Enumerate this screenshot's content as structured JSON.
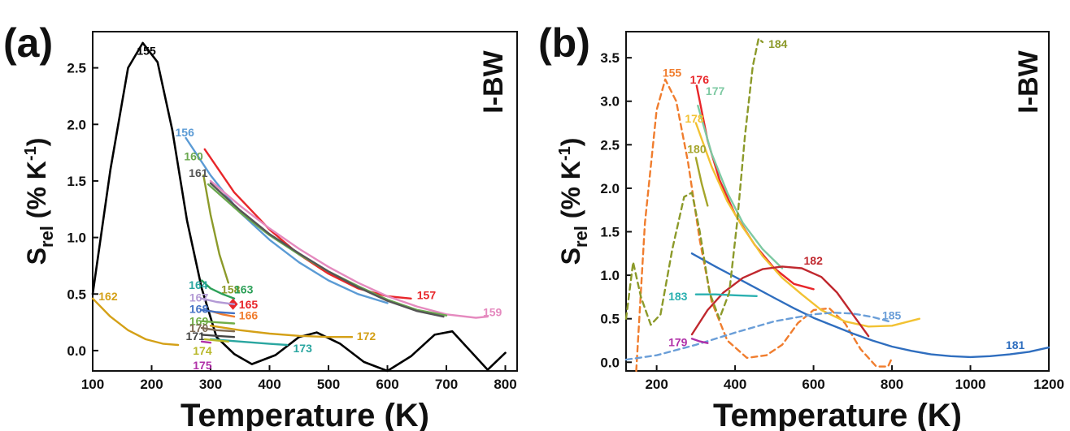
{
  "figure": {
    "panels": [
      {
        "label": "(a)",
        "tag": "I-BW"
      },
      {
        "label": "(b)",
        "tag": "I-BW"
      }
    ]
  },
  "chart_data": [
    {
      "type": "line",
      "panel": "(a)",
      "xlabel": "Temperature (K)",
      "ylabel": "S_rel (% K^-1)",
      "xlim": [
        100,
        820
      ],
      "ylim": [
        -0.18,
        2.82
      ],
      "xticks": [
        100,
        200,
        300,
        400,
        500,
        600,
        700,
        800
      ],
      "yticks": [
        0.0,
        0.5,
        1.0,
        1.5,
        2.0,
        2.5
      ],
      "grid": false,
      "series": [
        {
          "name": "155",
          "color": "#000000",
          "dash": false,
          "x": [
            100,
            130,
            160,
            185,
            210,
            235,
            260,
            285,
            310,
            340,
            370,
            410,
            450,
            480,
            520,
            560,
            600,
            640,
            680,
            710,
            740,
            770,
            800
          ],
          "y": [
            0.5,
            1.6,
            2.5,
            2.72,
            2.55,
            1.95,
            1.15,
            0.55,
            0.12,
            -0.03,
            -0.12,
            -0.04,
            0.12,
            0.16,
            0.06,
            -0.1,
            -0.18,
            -0.05,
            0.14,
            0.17,
            0.0,
            -0.17,
            -0.02
          ],
          "label_at": [
            175,
            2.65
          ]
        },
        {
          "name": "156",
          "color": "#5b9bd5",
          "dash": false,
          "x": [
            258,
            300,
            350,
            400,
            450,
            500,
            550,
            600
          ],
          "y": [
            1.88,
            1.55,
            1.22,
            0.98,
            0.78,
            0.62,
            0.5,
            0.42
          ],
          "label_at": [
            240,
            1.93
          ]
        },
        {
          "name": "157",
          "color": "#e8262a",
          "dash": false,
          "x": [
            290,
            340,
            400,
            450,
            500,
            550,
            600,
            640
          ],
          "y": [
            1.78,
            1.4,
            1.07,
            0.85,
            0.68,
            0.55,
            0.48,
            0.46
          ],
          "label_at": [
            650,
            0.49
          ]
        },
        {
          "name": "158",
          "color": "#8c9a2a",
          "dash": false,
          "x": [
            288,
            300,
            315,
            330
          ],
          "y": [
            1.55,
            1.2,
            0.85,
            0.6
          ],
          "label_at": [
            318,
            0.54
          ]
        },
        {
          "name": "159",
          "color": "#e58abf",
          "dash": false,
          "x": [
            300,
            350,
            400,
            450,
            500,
            550,
            600,
            650,
            700,
            750,
            770
          ],
          "y": [
            1.5,
            1.28,
            1.08,
            0.9,
            0.74,
            0.6,
            0.48,
            0.39,
            0.32,
            0.29,
            0.3
          ],
          "label_at": [
            762,
            0.34
          ]
        },
        {
          "name": "160",
          "color": "#6aa84f",
          "dash": false,
          "x": [
            296,
            350,
            400,
            450,
            500,
            550,
            600,
            650,
            700
          ],
          "y": [
            1.47,
            1.22,
            1.02,
            0.85,
            0.7,
            0.57,
            0.45,
            0.36,
            0.31
          ],
          "label_at": [
            255,
            1.72
          ]
        },
        {
          "name": "161",
          "color": "#555555",
          "dash": false,
          "x": [
            300,
            350,
            400,
            450,
            500,
            550,
            600,
            650,
            695
          ],
          "y": [
            1.48,
            1.24,
            1.03,
            0.86,
            0.7,
            0.56,
            0.44,
            0.35,
            0.3
          ],
          "label_at": [
            263,
            1.57
          ]
        },
        {
          "name": "162",
          "color": "#d4a017",
          "dash": false,
          "x": [
            100,
            130,
            160,
            190,
            220,
            245
          ],
          "y": [
            0.46,
            0.3,
            0.18,
            0.1,
            0.06,
            0.05
          ],
          "label_at": [
            110,
            0.48
          ]
        },
        {
          "name": "163",
          "color": "#2ca058",
          "dash": false,
          "x": [
            285,
            300,
            320,
            340
          ],
          "y": [
            0.62,
            0.55,
            0.5,
            0.46
          ],
          "label_at": [
            340,
            0.54
          ]
        },
        {
          "name": "164",
          "color": "#2aa6a0",
          "dash": false,
          "label_at": [
            263,
            0.58
          ]
        },
        {
          "name": "165",
          "color": "#e8262a",
          "dash": false,
          "marker": "diamond",
          "x": [
            338
          ],
          "y": [
            0.41
          ],
          "label_at": [
            348,
            0.41
          ]
        },
        {
          "name": "166",
          "color": "#f07d2e",
          "dash": false,
          "x": [
            300,
            320,
            340
          ],
          "y": [
            0.35,
            0.32,
            0.3
          ],
          "label_at": [
            348,
            0.31
          ]
        },
        {
          "name": "167",
          "color": "#b39ad5",
          "dash": false,
          "x": [
            285,
            310,
            340
          ],
          "y": [
            0.46,
            0.43,
            0.41
          ],
          "label_at": [
            264,
            0.47
          ]
        },
        {
          "name": "168",
          "color": "#4472c4",
          "dash": false,
          "x": [
            285,
            310,
            340
          ],
          "y": [
            0.36,
            0.34,
            0.33
          ],
          "label_at": [
            264,
            0.37
          ]
        },
        {
          "name": "169",
          "color": "#70ad47",
          "dash": false,
          "x": [
            285,
            310,
            340
          ],
          "y": [
            0.26,
            0.25,
            0.24
          ],
          "label_at": [
            264,
            0.26
          ]
        },
        {
          "name": "170",
          "color": "#7f6a55",
          "dash": false,
          "x": [
            285,
            310,
            340
          ],
          "y": [
            0.2,
            0.18,
            0.17
          ],
          "label_at": [
            264,
            0.2
          ]
        },
        {
          "name": "171",
          "color": "#444444",
          "dash": false,
          "x": [
            285,
            310,
            340
          ],
          "y": [
            0.14,
            0.13,
            0.12
          ],
          "label_at": [
            258,
            0.13
          ]
        },
        {
          "name": "172",
          "color": "#d4a017",
          "dash": false,
          "x": [
            300,
            350,
            400,
            450,
            500,
            540
          ],
          "y": [
            0.22,
            0.18,
            0.15,
            0.13,
            0.12,
            0.12
          ],
          "label_at": [
            548,
            0.13
          ]
        },
        {
          "name": "173",
          "color": "#2aa6a0",
          "dash": false,
          "x": [
            300,
            350,
            400,
            430
          ],
          "y": [
            0.1,
            0.08,
            0.06,
            0.05
          ],
          "label_at": [
            440,
            0.02
          ]
        },
        {
          "name": "174",
          "color": "#b8b82a",
          "dash": false,
          "x": [
            290,
            310,
            330
          ],
          "y": [
            0.1,
            0.09,
            0.08
          ],
          "label_at": [
            270,
            0.0
          ]
        },
        {
          "name": "175",
          "color": "#b030a8",
          "dash": false,
          "x": [
            285,
            300
          ],
          "y": [
            0.08,
            0.07
          ],
          "label_at": [
            270,
            -0.13
          ]
        }
      ]
    },
    {
      "type": "line",
      "panel": "(b)",
      "xlabel": "Temperature (K)",
      "ylabel": "S_rel (% K^-1)",
      "xlim": [
        122,
        1200
      ],
      "ylim": [
        -0.1,
        3.8
      ],
      "xticks": [
        200,
        400,
        600,
        800,
        1000,
        1200
      ],
      "yticks": [
        0.0,
        0.5,
        1.0,
        1.5,
        2.0,
        2.5,
        3.0,
        3.5
      ],
      "grid": false,
      "series": [
        {
          "name": "155",
          "color": "#f07d2e",
          "dash": true,
          "x": [
            148,
            170,
            200,
            222,
            250,
            280,
            310,
            340,
            380,
            430,
            480,
            520,
            560,
            600,
            640,
            680,
            720,
            760,
            790,
            800
          ],
          "y": [
            -0.1,
            1.6,
            2.9,
            3.25,
            3.0,
            2.3,
            1.4,
            0.7,
            0.25,
            0.05,
            0.08,
            0.2,
            0.45,
            0.6,
            0.62,
            0.45,
            0.15,
            -0.05,
            -0.05,
            0.05
          ],
          "label_at": [
            215,
            3.33
          ]
        },
        {
          "name": "176",
          "color": "#e8262a",
          "dash": false,
          "x": [
            302,
            330,
            360,
            400,
            450,
            500,
            550,
            600
          ],
          "y": [
            3.18,
            2.55,
            2.1,
            1.7,
            1.35,
            1.08,
            0.9,
            0.84
          ],
          "label_at": [
            285,
            3.25
          ]
        },
        {
          "name": "177",
          "color": "#7dc9a2",
          "dash": false,
          "x": [
            305,
            340,
            380,
            420,
            470,
            520
          ],
          "y": [
            2.95,
            2.4,
            1.95,
            1.6,
            1.3,
            1.08
          ],
          "label_at": [
            325,
            3.12
          ]
        },
        {
          "name": "178",
          "color": "#f2c232",
          "dash": false,
          "x": [
            300,
            340,
            380,
            420,
            470,
            520,
            570,
            620,
            680,
            740,
            800,
            870
          ],
          "y": [
            2.75,
            2.25,
            1.85,
            1.55,
            1.22,
            0.97,
            0.78,
            0.6,
            0.47,
            0.41,
            0.42,
            0.5
          ],
          "label_at": [
            272,
            2.8
          ]
        },
        {
          "name": "180",
          "color": "#a5a52a",
          "dash": false,
          "x": [
            300,
            315,
            330
          ],
          "y": [
            2.35,
            2.05,
            1.8
          ],
          "label_at": [
            278,
            2.45
          ]
        },
        {
          "name": "181",
          "color": "#2f6ebf",
          "dash": false,
          "x": [
            290,
            350,
            400,
            450,
            500,
            550,
            600,
            650,
            700,
            750,
            800,
            850,
            900,
            950,
            1000,
            1050,
            1100,
            1150,
            1200
          ],
          "y": [
            1.25,
            1.1,
            0.98,
            0.86,
            0.74,
            0.62,
            0.51,
            0.42,
            0.33,
            0.25,
            0.18,
            0.13,
            0.09,
            0.07,
            0.06,
            0.07,
            0.09,
            0.12,
            0.17
          ],
          "label_at": [
            1090,
            0.2
          ]
        },
        {
          "name": "182",
          "color": "#c0282e",
          "dash": false,
          "x": [
            290,
            330,
            370,
            420,
            470,
            520,
            570,
            620,
            660,
            700,
            740
          ],
          "y": [
            0.32,
            0.6,
            0.8,
            0.97,
            1.07,
            1.1,
            1.08,
            0.98,
            0.8,
            0.55,
            0.3
          ],
          "label_at": [
            575,
            1.17
          ]
        },
        {
          "name": "183",
          "color": "#2ab0b0",
          "dash": false,
          "x": [
            300,
            350,
            400,
            455
          ],
          "y": [
            0.78,
            0.78,
            0.77,
            0.76
          ],
          "label_at": [
            230,
            0.76
          ]
        },
        {
          "name": "184",
          "color": "#8c9a2a",
          "dash": true,
          "x": [
            122,
            140,
            160,
            185,
            210,
            240,
            270,
            290,
            310,
            335,
            360,
            385,
            405,
            425,
            445,
            460,
            470
          ],
          "y": [
            0.5,
            1.15,
            0.75,
            0.43,
            0.55,
            1.3,
            1.9,
            1.95,
            1.5,
            0.8,
            0.5,
            0.8,
            1.6,
            2.6,
            3.4,
            3.72,
            3.68
          ],
          "label_at": [
            485,
            3.66
          ]
        },
        {
          "name": "185",
          "color": "#6a9ed8",
          "dash": true,
          "x": [
            122,
            200,
            300,
            400,
            500,
            600,
            650,
            700,
            750,
            800
          ],
          "y": [
            0.03,
            0.08,
            0.2,
            0.34,
            0.47,
            0.55,
            0.57,
            0.56,
            0.52,
            0.46
          ],
          "label_at": [
            775,
            0.54
          ]
        },
        {
          "name": "179",
          "color": "#b030a8",
          "dash": false,
          "x": [
            290,
            310,
            330
          ],
          "y": [
            0.27,
            0.24,
            0.22
          ],
          "label_at": [
            230,
            0.23
          ]
        }
      ]
    }
  ]
}
